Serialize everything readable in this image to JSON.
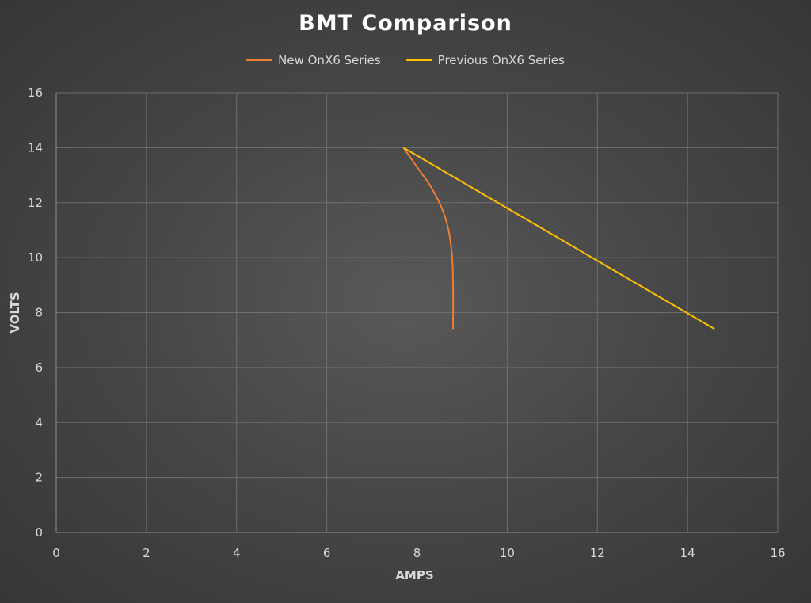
{
  "chart_data": {
    "type": "line",
    "title": "BMT Comparison",
    "xlabel": "AMPS",
    "ylabel": "VOLTS",
    "xlim": [
      0,
      16
    ],
    "ylim": [
      0,
      16
    ],
    "xticks": [
      0,
      2,
      4,
      6,
      8,
      10,
      12,
      14,
      16
    ],
    "yticks": [
      0,
      2,
      4,
      6,
      8,
      10,
      12,
      14,
      16
    ],
    "grid": true,
    "legend_position": "top",
    "series": [
      {
        "name": "New OnX6 Series",
        "color": "#ed7d31",
        "x": [
          7.7,
          8.0,
          8.3,
          8.55,
          8.7,
          8.78,
          8.8,
          8.8
        ],
        "y": [
          14.0,
          13.3,
          12.6,
          11.8,
          11.0,
          10.0,
          9.0,
          7.4
        ]
      },
      {
        "name": "Previous OnX6 Series",
        "color": "#ffc000",
        "x": [
          7.7,
          14.6
        ],
        "y": [
          14.0,
          7.4
        ]
      }
    ]
  }
}
